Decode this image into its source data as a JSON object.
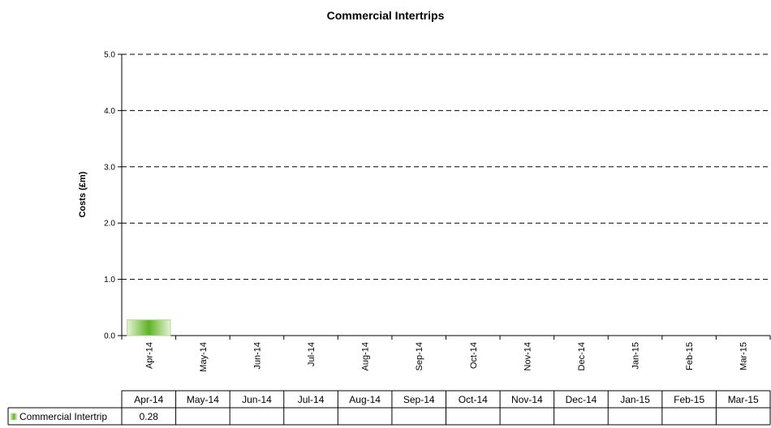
{
  "chart_data": {
    "type": "bar",
    "title": "Commercial Intertrips",
    "xlabel": "",
    "ylabel": "Costs (£m)",
    "ylim": [
      0,
      5
    ],
    "yticks": [
      "0.0",
      "1.0",
      "2.0",
      "3.0",
      "4.0",
      "5.0"
    ],
    "grid": true,
    "legend": "data-table",
    "categories": [
      "Apr-14",
      "May-14",
      "Jun-14",
      "Jul-14",
      "Aug-14",
      "Sep-14",
      "Oct-14",
      "Nov-14",
      "Dec-14",
      "Jan-15",
      "Feb-15",
      "Mar-15"
    ],
    "series": [
      {
        "name": "Commercial Intertrip",
        "values": [
          0.28,
          null,
          null,
          null,
          null,
          null,
          null,
          null,
          null,
          null,
          null,
          null
        ],
        "labels": [
          "0.28",
          "",
          "",
          "",
          "",
          "",
          "",
          "",
          "",
          "",
          "",
          ""
        ],
        "color": "#66b22a"
      }
    ]
  }
}
